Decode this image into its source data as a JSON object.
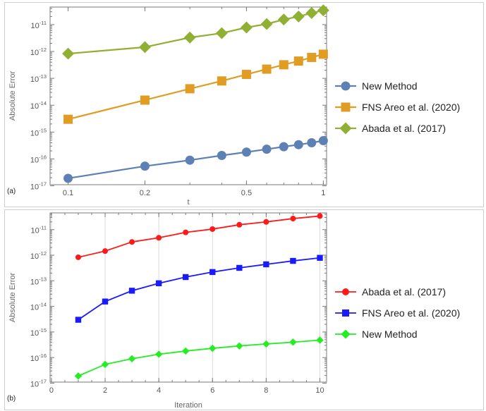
{
  "chart_data": [
    {
      "type": "line",
      "panel_tag": "(a)",
      "xlabel": "t",
      "ylabel": "Absolute Error",
      "xscale": "log",
      "yscale": "log",
      "xlim": [
        0.085,
        1.03
      ],
      "ylim": [
        1.1e-17,
        4.5e-11
      ],
      "x_ticks": [
        0.1,
        0.2,
        0.5,
        1
      ],
      "x_tick_labels": [
        "0.1",
        "0.2",
        "0.5",
        "1"
      ],
      "y_ticks": [
        1e-17,
        1e-16,
        1e-15,
        1e-14,
        1e-13,
        1e-12,
        1e-11
      ],
      "y_tick_labels": [
        {
          "base": "10",
          "exp": "-17"
        },
        {
          "base": "10",
          "exp": "-16"
        },
        {
          "base": "10",
          "exp": "-15"
        },
        {
          "base": "10",
          "exp": "-14"
        },
        {
          "base": "10",
          "exp": "-13"
        },
        {
          "base": "10",
          "exp": "-12"
        },
        {
          "base": "10",
          "exp": "-11"
        }
      ],
      "grid": false,
      "legend_position": "right",
      "x": [
        0.1,
        0.2,
        0.3,
        0.4,
        0.5,
        0.6,
        0.7,
        0.8,
        0.9,
        1.0
      ],
      "series": [
        {
          "name": "New Method",
          "color": "#5e81b5",
          "marker": "circle",
          "values": [
            1.9e-17,
            5.4e-17,
            9e-17,
            1.35e-16,
            1.8e-16,
            2.3e-16,
            2.85e-16,
            3.4e-16,
            4e-16,
            4.8e-16
          ]
        },
        {
          "name": "FNS Areo et al. (2020)",
          "color": "#e19c24",
          "marker": "square",
          "values": [
            3e-15,
            1.55e-14,
            4.1e-14,
            8e-14,
            1.4e-13,
            2.2e-13,
            3.2e-13,
            4.4e-13,
            6e-13,
            7.9e-13
          ]
        },
        {
          "name": "Abada et al. (2017)",
          "color": "#8fb032",
          "marker": "diamond",
          "values": [
            8.3e-13,
            1.45e-12,
            3.3e-12,
            4.8e-12,
            7.8e-12,
            1.05e-11,
            1.55e-11,
            2e-11,
            2.7e-11,
            3.4e-11
          ]
        }
      ]
    },
    {
      "type": "line",
      "panel_tag": "(b)",
      "xlabel": "Iteration",
      "ylabel": "Absolute Error",
      "xscale": "linear",
      "yscale": "log",
      "xlim": [
        -0.05,
        10.25
      ],
      "ylim": [
        1.1e-17,
        4.5e-11
      ],
      "x_ticks": [
        0,
        2,
        4,
        6,
        8,
        10
      ],
      "x_tick_labels": [
        "0",
        "2",
        "4",
        "6",
        "8",
        "10"
      ],
      "y_ticks": [
        1e-17,
        1e-16,
        1e-15,
        1e-14,
        1e-13,
        1e-12,
        1e-11
      ],
      "y_tick_labels": [
        {
          "base": "10",
          "exp": "-17"
        },
        {
          "base": "10",
          "exp": "-16"
        },
        {
          "base": "10",
          "exp": "-15"
        },
        {
          "base": "10",
          "exp": "-14"
        },
        {
          "base": "10",
          "exp": "-13"
        },
        {
          "base": "10",
          "exp": "-12"
        },
        {
          "base": "10",
          "exp": "-11"
        }
      ],
      "grid": true,
      "legend_position": "right",
      "x": [
        1,
        2,
        3,
        4,
        5,
        6,
        7,
        8,
        9,
        10
      ],
      "series": [
        {
          "name": "Abada et al. (2017)",
          "color": "#ff1a1a",
          "marker": "circle",
          "values": [
            8.3e-13,
            1.45e-12,
            3.3e-12,
            4.8e-12,
            7.8e-12,
            1.05e-11,
            1.55e-11,
            2e-11,
            2.7e-11,
            3.4e-11
          ]
        },
        {
          "name": "FNS Areo et al. (2020)",
          "color": "#1a1aff",
          "marker": "square",
          "values": [
            3e-15,
            1.55e-14,
            4.1e-14,
            8e-14,
            1.4e-13,
            2.2e-13,
            3.2e-13,
            4.4e-13,
            6e-13,
            7.9e-13
          ]
        },
        {
          "name": "New Method",
          "color": "#22ee22",
          "marker": "diamond",
          "values": [
            1.9e-17,
            5.4e-17,
            9e-17,
            1.35e-16,
            1.8e-16,
            2.3e-16,
            2.85e-16,
            3.4e-16,
            4e-16,
            4.8e-16
          ]
        }
      ]
    }
  ]
}
